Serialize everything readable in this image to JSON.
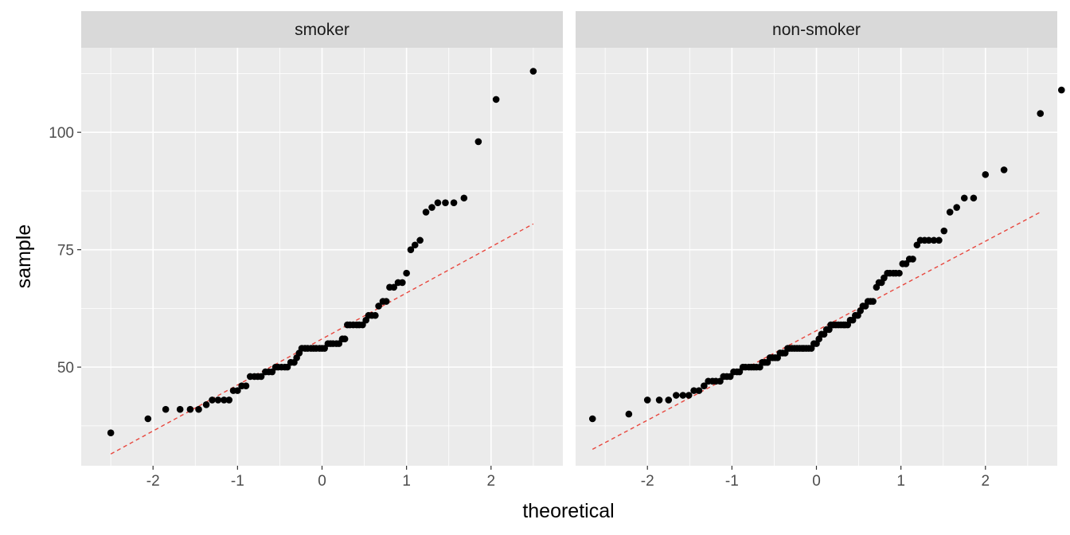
{
  "chart_data": {
    "type": "scatter",
    "facet_layout": "1 row x 2 columns, shared y axis",
    "xlabel": "theoretical",
    "ylabel": "sample",
    "xlim": [
      -2.85,
      2.85
    ],
    "ylim": [
      29,
      118
    ],
    "x_ticks": [
      -2,
      -1,
      0,
      1,
      2
    ],
    "x_tick_labels": [
      "-2",
      "-1",
      "0",
      "1",
      "2"
    ],
    "y_ticks": [
      50,
      75,
      100
    ],
    "y_tick_labels": [
      "50",
      "75",
      "100"
    ],
    "grid": true,
    "colors": {
      "panel_bg": "#ebebeb",
      "strip_bg": "#d9d9d9",
      "grid": "#ffffff",
      "points": "#000000",
      "reference_line": "#e8473e"
    },
    "panels": [
      {
        "title": "smoker",
        "reference_line": {
          "style": "dashed",
          "x": [
            -2.5,
            2.5
          ],
          "y": [
            31.5,
            80.5
          ]
        },
        "points": [
          [
            -2.5,
            36
          ],
          [
            -2.06,
            39
          ],
          [
            -1.85,
            41
          ],
          [
            -1.68,
            41
          ],
          [
            -1.56,
            41
          ],
          [
            -1.46,
            41
          ],
          [
            -1.37,
            42
          ],
          [
            -1.3,
            43
          ],
          [
            -1.23,
            43
          ],
          [
            -1.16,
            43
          ],
          [
            -1.1,
            43
          ],
          [
            -1.05,
            45
          ],
          [
            -1.0,
            45
          ],
          [
            -0.95,
            46
          ],
          [
            -0.9,
            46
          ],
          [
            -0.85,
            48
          ],
          [
            -0.8,
            48
          ],
          [
            -0.76,
            48
          ],
          [
            -0.72,
            48
          ],
          [
            -0.67,
            49
          ],
          [
            -0.63,
            49
          ],
          [
            -0.59,
            49
          ],
          [
            -0.55,
            50
          ],
          [
            -0.52,
            50
          ],
          [
            -0.48,
            50
          ],
          [
            -0.44,
            50
          ],
          [
            -0.41,
            50
          ],
          [
            -0.37,
            51
          ],
          [
            -0.33,
            51
          ],
          [
            -0.3,
            52
          ],
          [
            -0.27,
            53
          ],
          [
            -0.24,
            54
          ],
          [
            -0.2,
            54
          ],
          [
            -0.17,
            54
          ],
          [
            -0.13,
            54
          ],
          [
            -0.1,
            54
          ],
          [
            -0.07,
            54
          ],
          [
            -0.03,
            54
          ],
          [
            0.0,
            54
          ],
          [
            0.03,
            54
          ],
          [
            0.07,
            55
          ],
          [
            0.1,
            55
          ],
          [
            0.13,
            55
          ],
          [
            0.17,
            55
          ],
          [
            0.2,
            55
          ],
          [
            0.24,
            56
          ],
          [
            0.27,
            56
          ],
          [
            0.3,
            59
          ],
          [
            0.33,
            59
          ],
          [
            0.37,
            59
          ],
          [
            0.41,
            59
          ],
          [
            0.44,
            59
          ],
          [
            0.48,
            59
          ],
          [
            0.52,
            60
          ],
          [
            0.55,
            61
          ],
          [
            0.59,
            61
          ],
          [
            0.63,
            61
          ],
          [
            0.67,
            63
          ],
          [
            0.72,
            64
          ],
          [
            0.76,
            64
          ],
          [
            0.8,
            67
          ],
          [
            0.85,
            67
          ],
          [
            0.9,
            68
          ],
          [
            0.95,
            68
          ],
          [
            1.0,
            70
          ],
          [
            1.05,
            75
          ],
          [
            1.1,
            76
          ],
          [
            1.16,
            77
          ],
          [
            1.23,
            83
          ],
          [
            1.3,
            84
          ],
          [
            1.37,
            85
          ],
          [
            1.46,
            85
          ],
          [
            1.56,
            85
          ],
          [
            1.68,
            86
          ],
          [
            1.85,
            98
          ],
          [
            2.06,
            107
          ],
          [
            2.5,
            113
          ]
        ]
      },
      {
        "title": "non-smoker",
        "reference_line": {
          "style": "dashed",
          "x": [
            -2.65,
            2.65
          ],
          "y": [
            32.5,
            83
          ]
        },
        "points": [
          [
            -2.65,
            39
          ],
          [
            -2.22,
            40
          ],
          [
            -2.0,
            43
          ],
          [
            -1.86,
            43
          ],
          [
            -1.75,
            43
          ],
          [
            -1.66,
            44
          ],
          [
            -1.58,
            44
          ],
          [
            -1.51,
            44
          ],
          [
            -1.45,
            45
          ],
          [
            -1.39,
            45
          ],
          [
            -1.33,
            46
          ],
          [
            -1.28,
            47
          ],
          [
            -1.23,
            47
          ],
          [
            -1.19,
            47
          ],
          [
            -1.14,
            47
          ],
          [
            -1.1,
            48
          ],
          [
            -1.06,
            48
          ],
          [
            -1.02,
            48
          ],
          [
            -0.98,
            49
          ],
          [
            -0.94,
            49
          ],
          [
            -0.91,
            49
          ],
          [
            -0.87,
            50
          ],
          [
            -0.84,
            50
          ],
          [
            -0.8,
            50
          ],
          [
            -0.77,
            50
          ],
          [
            -0.74,
            50
          ],
          [
            -0.71,
            50
          ],
          [
            -0.67,
            50
          ],
          [
            -0.64,
            51
          ],
          [
            -0.61,
            51
          ],
          [
            -0.58,
            51
          ],
          [
            -0.55,
            52
          ],
          [
            -0.52,
            52
          ],
          [
            -0.49,
            52
          ],
          [
            -0.46,
            52
          ],
          [
            -0.43,
            53
          ],
          [
            -0.4,
            53
          ],
          [
            -0.37,
            53
          ],
          [
            -0.34,
            54
          ],
          [
            -0.32,
            54
          ],
          [
            -0.29,
            54
          ],
          [
            -0.26,
            54
          ],
          [
            -0.23,
            54
          ],
          [
            -0.2,
            54
          ],
          [
            -0.17,
            54
          ],
          [
            -0.15,
            54
          ],
          [
            -0.12,
            54
          ],
          [
            -0.09,
            54
          ],
          [
            -0.06,
            54
          ],
          [
            -0.03,
            55
          ],
          [
            0.0,
            55
          ],
          [
            0.03,
            56
          ],
          [
            0.06,
            57
          ],
          [
            0.09,
            57
          ],
          [
            0.12,
            58
          ],
          [
            0.15,
            58
          ],
          [
            0.17,
            59
          ],
          [
            0.2,
            59
          ],
          [
            0.23,
            59
          ],
          [
            0.26,
            59
          ],
          [
            0.29,
            59
          ],
          [
            0.32,
            59
          ],
          [
            0.34,
            59
          ],
          [
            0.37,
            59
          ],
          [
            0.4,
            60
          ],
          [
            0.43,
            60
          ],
          [
            0.46,
            61
          ],
          [
            0.49,
            61
          ],
          [
            0.52,
            62
          ],
          [
            0.55,
            63
          ],
          [
            0.58,
            63
          ],
          [
            0.61,
            64
          ],
          [
            0.64,
            64
          ],
          [
            0.67,
            64
          ],
          [
            0.71,
            67
          ],
          [
            0.74,
            68
          ],
          [
            0.77,
            68
          ],
          [
            0.8,
            69
          ],
          [
            0.84,
            70
          ],
          [
            0.87,
            70
          ],
          [
            0.91,
            70
          ],
          [
            0.94,
            70
          ],
          [
            0.98,
            70
          ],
          [
            1.02,
            72
          ],
          [
            1.06,
            72
          ],
          [
            1.1,
            73
          ],
          [
            1.14,
            73
          ],
          [
            1.19,
            76
          ],
          [
            1.23,
            77
          ],
          [
            1.28,
            77
          ],
          [
            1.33,
            77
          ],
          [
            1.39,
            77
          ],
          [
            1.45,
            77
          ],
          [
            1.51,
            79
          ],
          [
            1.58,
            83
          ],
          [
            1.66,
            84
          ],
          [
            1.75,
            86
          ],
          [
            1.86,
            86
          ],
          [
            2.0,
            91
          ],
          [
            2.22,
            92
          ],
          [
            2.65,
            104
          ],
          [
            2.9,
            109
          ]
        ]
      }
    ]
  }
}
